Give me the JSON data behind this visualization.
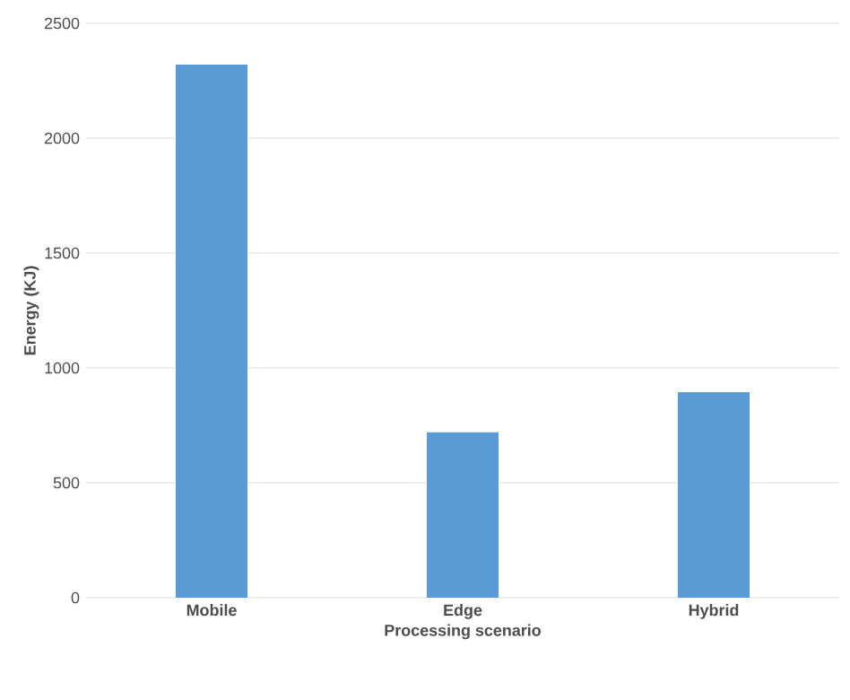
{
  "chart_data": {
    "type": "bar",
    "xlabel": "Processing scenario",
    "ylabel": "Energy (KJ)",
    "categories": [
      "Mobile",
      "Edge",
      "Hybrid"
    ],
    "values": [
      2320,
      720,
      895
    ],
    "color": "#5b9bd5",
    "ylim": [
      0,
      2500
    ],
    "yticks": [
      0,
      500,
      1000,
      1500,
      2000,
      2500
    ],
    "grid": "y"
  }
}
